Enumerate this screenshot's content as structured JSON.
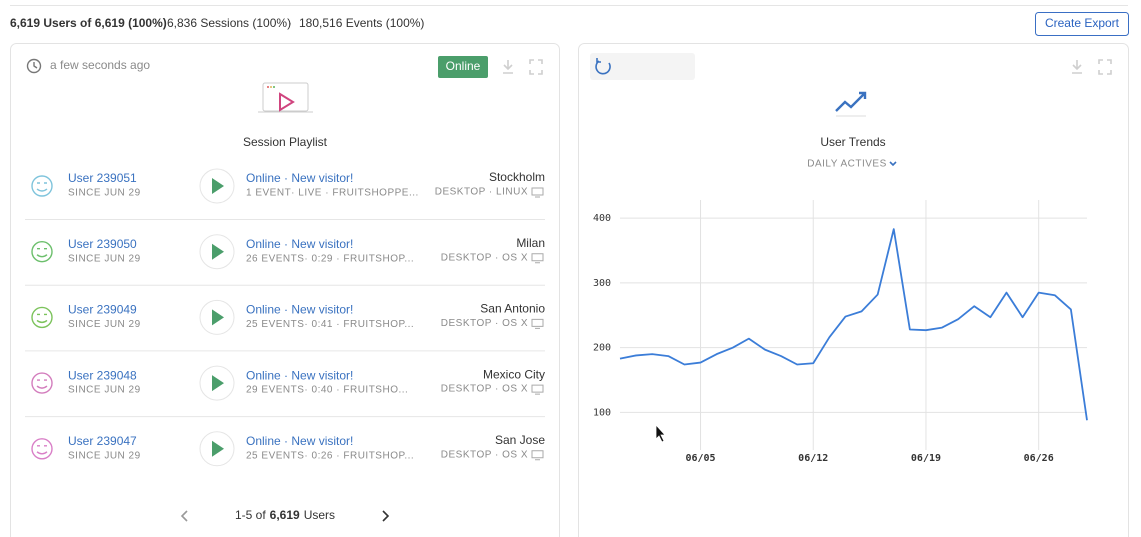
{
  "header": {
    "users": "6,619 Users of 6,619 (100%)",
    "separator": "·",
    "sessions": "6,836 Sessions (100%)",
    "events": "180,516 Events (100%)",
    "export_button": "Create Export"
  },
  "playlist": {
    "updated": "a few seconds ago",
    "status": "Online",
    "title": "Session Playlist",
    "rows": [
      {
        "user": "User 239051",
        "since": "SINCE JUN 29",
        "status": "Online · New visitor!",
        "detail": "1 EVENT· LIVE · FRUITSHOPPE...",
        "city": "Stockholm",
        "device": "DESKTOP · LINUX"
      },
      {
        "user": "User 239050",
        "since": "SINCE JUN 29",
        "status": "Online · New visitor!",
        "detail": "26 EVENTS· 0:29 · FRUITSHOP...",
        "city": "Milan",
        "device": "DESKTOP · OS X"
      },
      {
        "user": "User 239049",
        "since": "SINCE JUN 29",
        "status": "Online · New visitor!",
        "detail": "25 EVENTS· 0:41 · FRUITSHOP...",
        "city": "San Antonio",
        "device": "DESKTOP · OS X"
      },
      {
        "user": "User 239048",
        "since": "SINCE JUN 29",
        "status": "Online · New visitor!",
        "detail": "29 EVENTS· 0:40 · FRUITSHO...",
        "city": "Mexico City",
        "device": "DESKTOP · OS X"
      },
      {
        "user": "User 239047",
        "since": "SINCE JUN 29",
        "status": "Online · New visitor!",
        "detail": "25 EVENTS· 0:26 · FRUITSHOP...",
        "city": "San Jose",
        "device": "DESKTOP · OS X"
      }
    ],
    "pagination": {
      "range": "1-5 of",
      "total": "6,619",
      "unit": "Users"
    }
  },
  "trends": {
    "title": "User Trends",
    "metric": "DAILY ACTIVES",
    "chart_data": {
      "type": "line",
      "x": [
        "05/31",
        "06/01",
        "06/02",
        "06/03",
        "06/04",
        "06/05",
        "06/06",
        "06/07",
        "06/08",
        "06/09",
        "06/10",
        "06/11",
        "06/12",
        "06/13",
        "06/14",
        "06/15",
        "06/16",
        "06/17",
        "06/18",
        "06/19",
        "06/20",
        "06/21",
        "06/22",
        "06/23",
        "06/24",
        "06/25",
        "06/26",
        "06/27",
        "06/28",
        "06/29"
      ],
      "series": [
        {
          "name": "Daily actives",
          "color": "#3b7dd8",
          "values": [
            183,
            188,
            190,
            187,
            174,
            177,
            190,
            200,
            214,
            197,
            187,
            174,
            176,
            216,
            248,
            256,
            282,
            383,
            228,
            227,
            231,
            244,
            264,
            247,
            285,
            247,
            285,
            281,
            259,
            88
          ]
        }
      ],
      "xticks": [
        "06/05",
        "06/12",
        "06/19",
        "06/26"
      ],
      "ylim": [
        42,
        428
      ],
      "yticks": [
        100,
        200,
        300,
        400
      ],
      "grid": true
    }
  }
}
